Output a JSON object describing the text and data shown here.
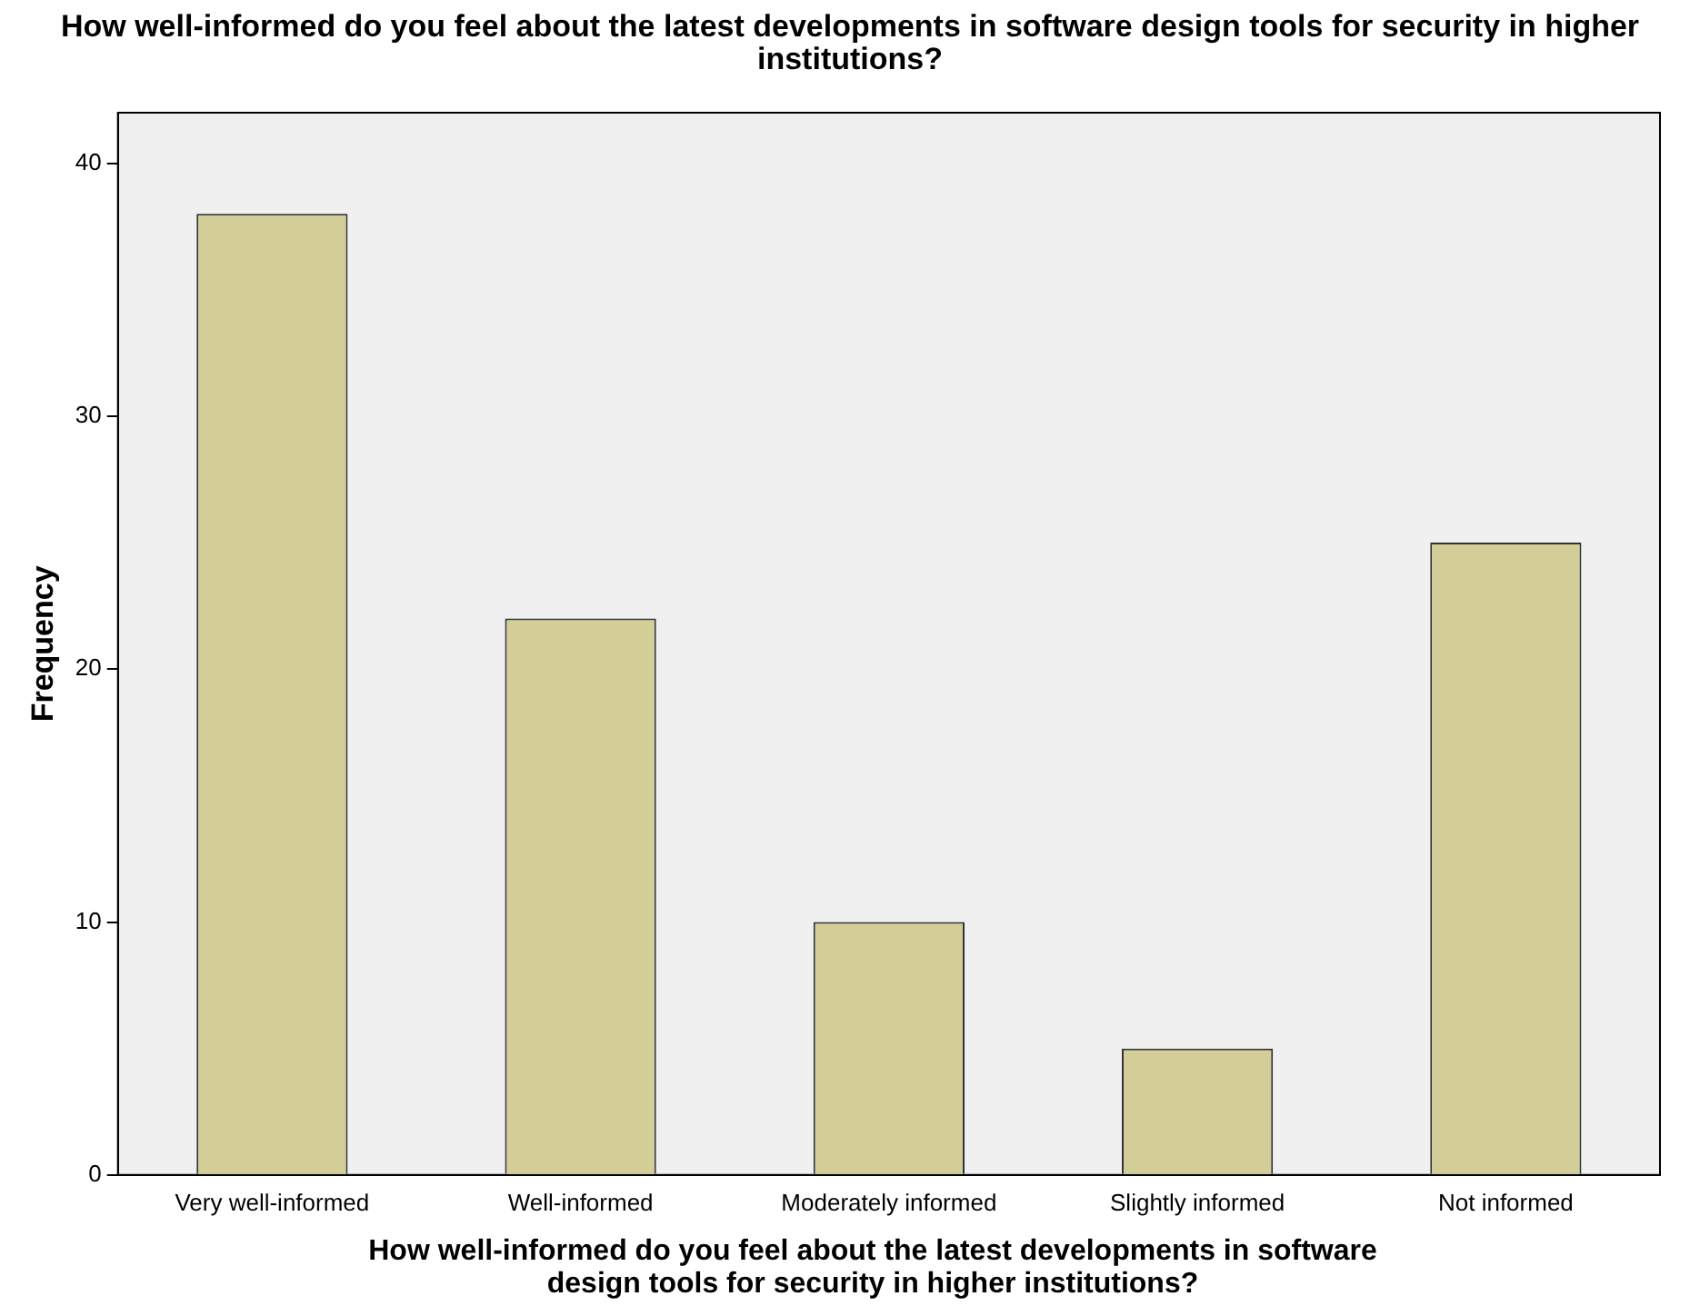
{
  "chart_data": {
    "type": "bar",
    "title": "How well-informed do you feel about the latest developments in software design tools for security in higher institutions?",
    "xlabel": "How well-informed do you feel about the latest developments in software design tools for security in higher institutions?",
    "ylabel": "Frequency",
    "categories": [
      "Very well-informed",
      "Well-informed",
      "Moderately informed",
      "Slightly informed",
      "Not informed"
    ],
    "values": [
      38,
      22,
      10,
      5,
      25
    ],
    "color": "#d3ce97",
    "ylim": [
      0,
      42
    ],
    "yticks": [
      0,
      10,
      20,
      30,
      40
    ],
    "grid": false,
    "legend": false
  }
}
